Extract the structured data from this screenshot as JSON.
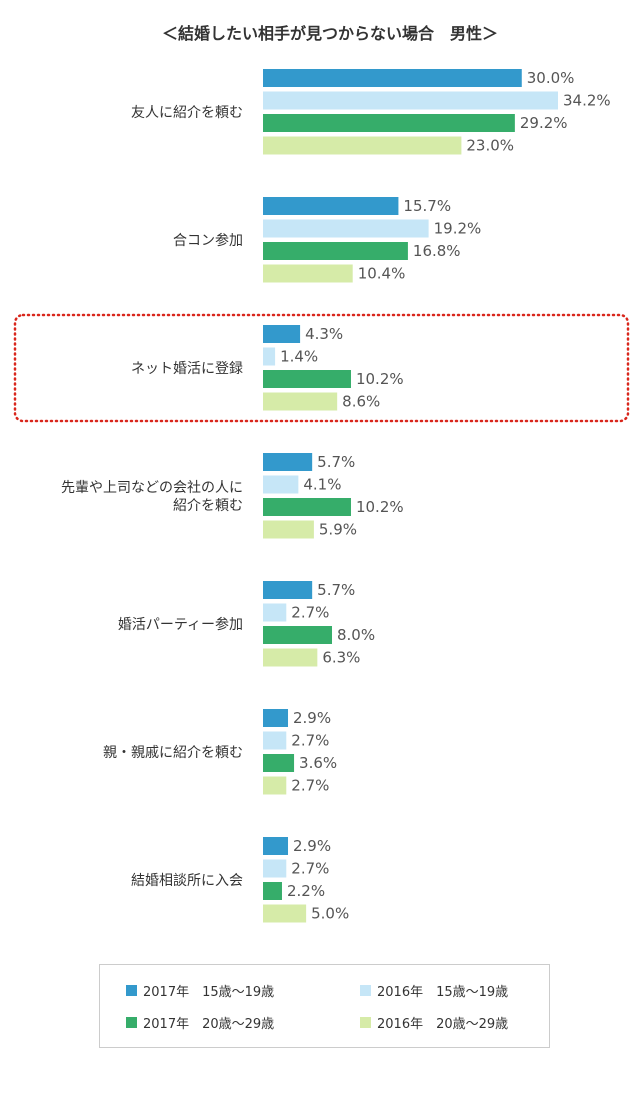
{
  "chart_data": {
    "type": "bar",
    "orientation": "horizontal",
    "title": "＜結婚したい相手が見つからない場合　男性＞",
    "categories": [
      "友人に紹介を頼む",
      "合コン参加",
      "ネット婚活に登録",
      "先輩や上司などの会社の人に紹介を頼む",
      "婚活パーティー参加",
      "親・親戚に紹介を頼む",
      "結婚相談所に入会"
    ],
    "category_lines": [
      [
        "友人に紹介を頼む"
      ],
      [
        "合コン参加"
      ],
      [
        "ネット婚活に登録"
      ],
      [
        "先輩や上司などの会社の人に",
        "紹介を頼む"
      ],
      [
        "婚活パーティー参加"
      ],
      [
        "親・親戚に紹介を頼む"
      ],
      [
        "結婚相談所に入会"
      ]
    ],
    "series": [
      {
        "name": "2017年　15歳〜19歳",
        "color": "#3399cc",
        "values": [
          30.0,
          15.7,
          4.3,
          5.7,
          5.7,
          2.9,
          2.9
        ]
      },
      {
        "name": "2016年　15歳〜19歳",
        "color": "#c6e6f7",
        "values": [
          34.2,
          19.2,
          1.4,
          4.1,
          2.7,
          2.7,
          2.7
        ]
      },
      {
        "name": "2017年　20歳〜29歳",
        "color": "#36ad6a",
        "values": [
          29.2,
          16.8,
          10.2,
          10.2,
          8.0,
          3.6,
          2.2
        ]
      },
      {
        "name": "2016年　20歳〜29歳",
        "color": "#d6eba8",
        "values": [
          23.0,
          10.4,
          8.6,
          5.9,
          6.3,
          2.7,
          5.0
        ]
      }
    ],
    "value_suffix": "%",
    "xlim": [
      0,
      34.2
    ],
    "grid": false,
    "legend_position": "bottom",
    "highlighted_category": "ネット婚活に登録",
    "highlight_color": "#d9261c"
  }
}
